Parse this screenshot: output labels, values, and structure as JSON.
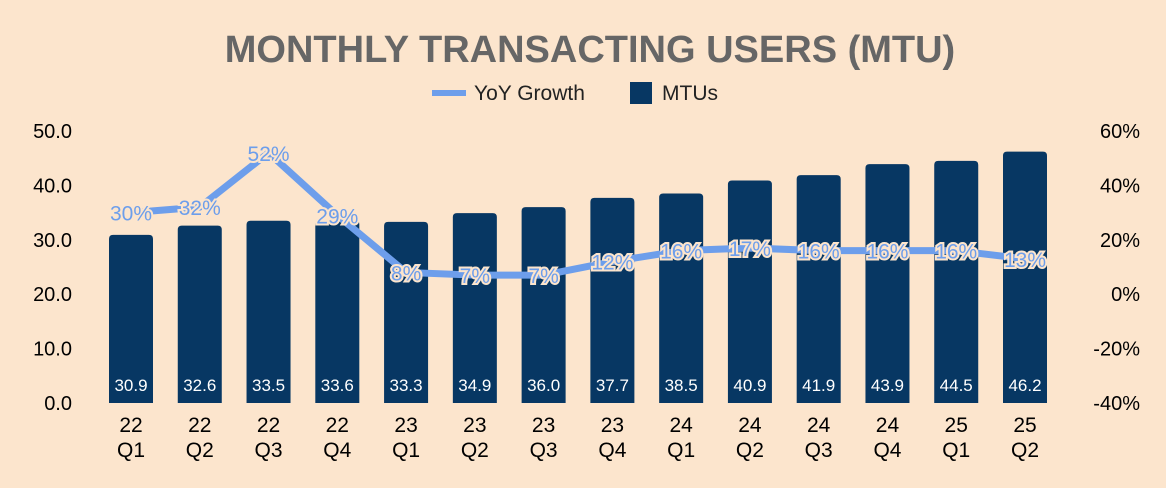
{
  "chart_data": {
    "type": "bar+line",
    "title": "MONTHLY TRANSACTING USERS (MTU)",
    "legend_position": "top",
    "categories": [
      [
        "22",
        "Q1"
      ],
      [
        "22",
        "Q2"
      ],
      [
        "22",
        "Q3"
      ],
      [
        "22",
        "Q4"
      ],
      [
        "23",
        "Q1"
      ],
      [
        "23",
        "Q2"
      ],
      [
        "23",
        "Q3"
      ],
      [
        "23",
        "Q4"
      ],
      [
        "24",
        "Q1"
      ],
      [
        "24",
        "Q2"
      ],
      [
        "24",
        "Q3"
      ],
      [
        "24",
        "Q4"
      ],
      [
        "25",
        "Q1"
      ],
      [
        "25",
        "Q2"
      ]
    ],
    "series": [
      {
        "name": "MTUs",
        "type": "bar",
        "axis": "left",
        "color": "#073763",
        "values": [
          30.9,
          32.6,
          33.5,
          33.6,
          33.3,
          34.9,
          36.0,
          37.7,
          38.5,
          40.9,
          41.9,
          43.9,
          44.5,
          46.2
        ],
        "labels": [
          "30.9",
          "32.6",
          "33.5",
          "33.6",
          "33.3",
          "34.9",
          "36.0",
          "37.7",
          "38.5",
          "40.9",
          "41.9",
          "43.9",
          "44.5",
          "46.2"
        ]
      },
      {
        "name": "YoY Growth",
        "type": "line",
        "axis": "right",
        "color": "#6d9eeb",
        "values": [
          30,
          32,
          52,
          29,
          8,
          7,
          7,
          12,
          16,
          17,
          16,
          16,
          16,
          13
        ],
        "labels": [
          "30%",
          "32%",
          "52%",
          "29%",
          "8%",
          "7%",
          "7%",
          "12%",
          "16%",
          "17%",
          "16%",
          "16%",
          "16%",
          "13%"
        ]
      }
    ],
    "left_axis": {
      "ylim": [
        0,
        50
      ],
      "ticks": [
        "0.0",
        "10.0",
        "20.0",
        "30.0",
        "40.0",
        "50.0"
      ]
    },
    "right_axis": {
      "ylim": [
        -40,
        60
      ],
      "ticks": [
        "-40%",
        "-20%",
        "0%",
        "20%",
        "40%",
        "60%"
      ]
    },
    "grid": false,
    "background": "#fce5cd"
  }
}
